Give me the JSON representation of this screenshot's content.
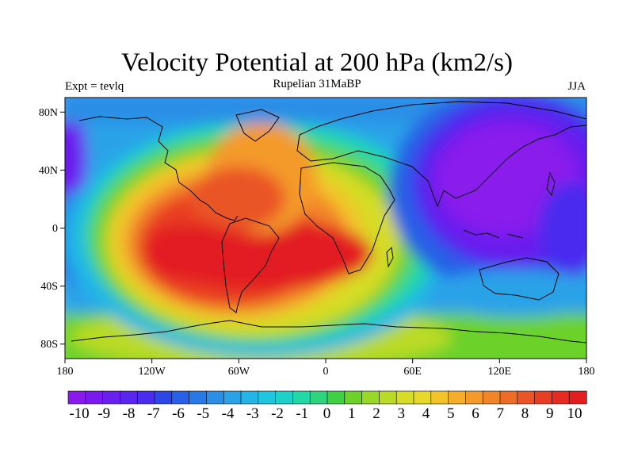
{
  "title": "Velocity Potential at 200 hPa (km2/s)",
  "subtitle_left": "Expt = tevlq",
  "subtitle_center": "Rupelian  31MaBP",
  "subtitle_right": "JJA",
  "lon_ticks": [
    "180",
    "120W",
    "60W",
    "0",
    "60E",
    "120E",
    "180"
  ],
  "lat_ticks": [
    "80N",
    "40N",
    "0",
    "40S",
    "80S"
  ],
  "colorbar": {
    "labels": [
      "-10",
      "-9",
      "-8",
      "-7",
      "-6",
      "-5",
      "-4",
      "-3",
      "-2",
      "-1",
      "0",
      "1",
      "2",
      "3",
      "4",
      "5",
      "6",
      "7",
      "8",
      "9",
      "10"
    ],
    "colors": [
      "#8a1aec",
      "#7a1aee",
      "#6a1fee",
      "#5a25ee",
      "#4a2cee",
      "#2d46e6",
      "#2860e6",
      "#2878e6",
      "#2c8ee6",
      "#2aa2e8",
      "#23b5e8",
      "#20c6e0",
      "#1ed1c8",
      "#22d8a6",
      "#2ed47e",
      "#3fd044",
      "#6cd22a",
      "#98d826",
      "#bada26",
      "#d6dc28",
      "#e8d82a",
      "#f2c42a",
      "#f4ae2a",
      "#f49a2a",
      "#f2842a",
      "#ee6c28",
      "#ea5426",
      "#e83e24",
      "#e62c22",
      "#e21e20"
    ]
  },
  "field": {
    "unit": "km2/s",
    "level": "200 hPa",
    "maximum": {
      "lon": -60,
      "lat": -15,
      "value": 10
    },
    "minimum": {
      "lon": 140,
      "lat": 35,
      "value": -10
    }
  }
}
